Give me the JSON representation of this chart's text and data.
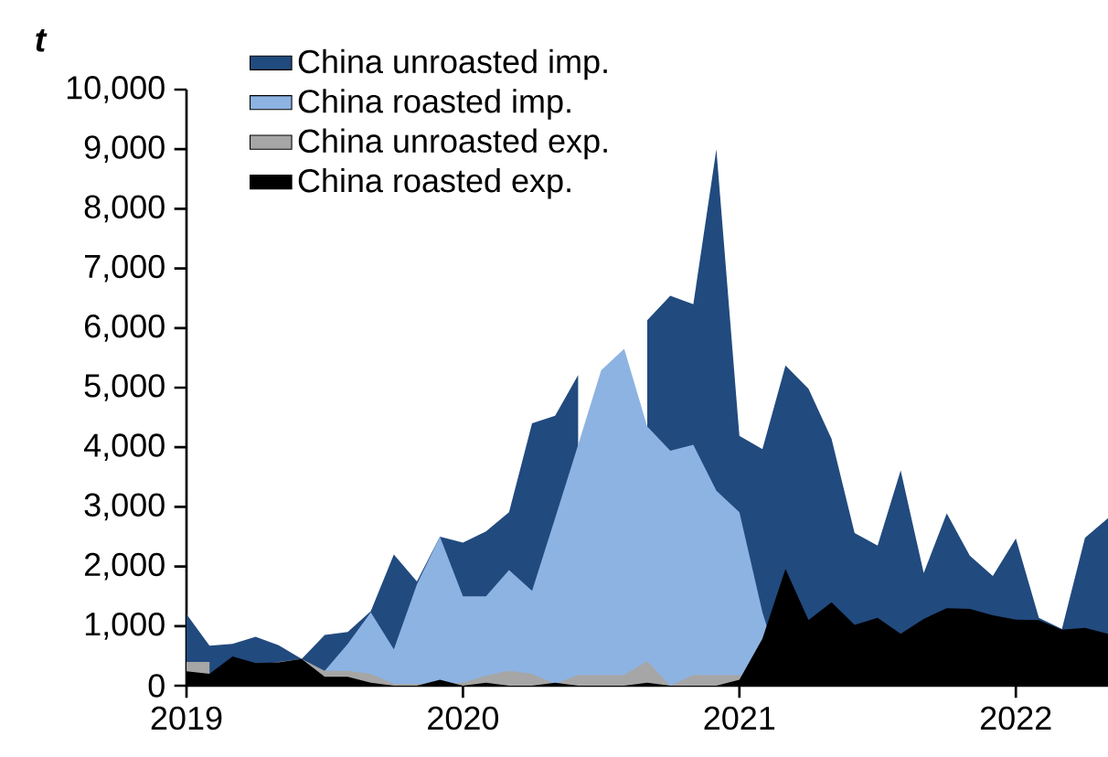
{
  "chart_data": {
    "type": "area",
    "ylabel": "t",
    "x": [
      "2019-01",
      "2019-02",
      "2019-03",
      "2019-04",
      "2019-05",
      "2019-06",
      "2019-07",
      "2019-08",
      "2019-09",
      "2019-10",
      "2019-11",
      "2019-12",
      "2020-01",
      "2020-02",
      "2020-03",
      "2020-04",
      "2020-05",
      "2020-06",
      "2020-07",
      "2020-08",
      "2020-09",
      "2020-10",
      "2020-11",
      "2020-12",
      "2021-01",
      "2021-02",
      "2021-03",
      "2021-04",
      "2021-05",
      "2021-06",
      "2021-07",
      "2021-08",
      "2021-09",
      "2021-10",
      "2021-11",
      "2021-12",
      "2022-01",
      "2022-02",
      "2022-03",
      "2022-04",
      "2022-05"
    ],
    "series": [
      {
        "name": "China unroasted imp.",
        "color": "#214a7e",
        "values": [
          1200,
          670,
          700,
          820,
          680,
          450,
          850,
          900,
          1250,
          2200,
          1750,
          2500,
          2400,
          2590,
          2910,
          4400,
          4530,
          5210,
          null,
          null,
          6130,
          6540,
          6400,
          9000,
          4190,
          3970,
          5370,
          4980,
          4140,
          2560,
          2350,
          3610,
          1890,
          2890,
          2180,
          1840,
          2470,
          1140,
          950,
          2480,
          2810
        ]
      },
      {
        "name": "China roasted imp.",
        "color": "#8db3e2",
        "values": [
          0,
          0,
          0,
          0,
          0,
          0,
          250,
          700,
          1230,
          610,
          1700,
          2500,
          1500,
          1500,
          1940,
          1590,
          2810,
          4040,
          5290,
          5650,
          4350,
          3940,
          4040,
          3270,
          2910,
          1230,
          0,
          0,
          0,
          0,
          0,
          0,
          0,
          0,
          0,
          0,
          0,
          0,
          0,
          0,
          0
        ]
      },
      {
        "name": "China unroasted exp.",
        "color": "#a6a6a6",
        "values": [
          400,
          400,
          null,
          350,
          400,
          450,
          250,
          250,
          200,
          30,
          30,
          30,
          50,
          170,
          250,
          200,
          30,
          180,
          180,
          180,
          410,
          0,
          180,
          180,
          180,
          0,
          0,
          0,
          0,
          0,
          0,
          0,
          0,
          0,
          0,
          0,
          0,
          0,
          0,
          0,
          0
        ]
      },
      {
        "name": "China roasted exp.",
        "color": "#000000",
        "values": [
          240,
          200,
          490,
          380,
          390,
          450,
          150,
          150,
          50,
          0,
          0,
          100,
          0,
          50,
          0,
          0,
          50,
          0,
          0,
          0,
          50,
          0,
          0,
          0,
          100,
          790,
          1960,
          1100,
          1400,
          1020,
          1140,
          870,
          1120,
          1300,
          1290,
          1180,
          1110,
          1100,
          940,
          970,
          870
        ]
      }
    ],
    "xlim": [
      "2019-01",
      "2022-05"
    ],
    "xticks": [
      "2019",
      "2020",
      "2021",
      "2022"
    ],
    "ylim": [
      0,
      10000
    ],
    "yticks": [
      0,
      {
        "value": 1000,
        "label": "1,000"
      },
      {
        "value": 2000,
        "label": "2,000"
      },
      {
        "value": 3000,
        "label": "3,000"
      },
      {
        "value": 4000,
        "label": "4,000"
      },
      {
        "value": 5000,
        "label": "5,000"
      },
      {
        "value": 6000,
        "label": "6,000"
      },
      {
        "value": 7000,
        "label": "7,000"
      },
      {
        "value": 8000,
        "label": "8,000"
      },
      {
        "value": 9000,
        "label": "9,000"
      },
      {
        "value": 10000,
        "label": "10,000"
      }
    ],
    "legend": "top left"
  }
}
